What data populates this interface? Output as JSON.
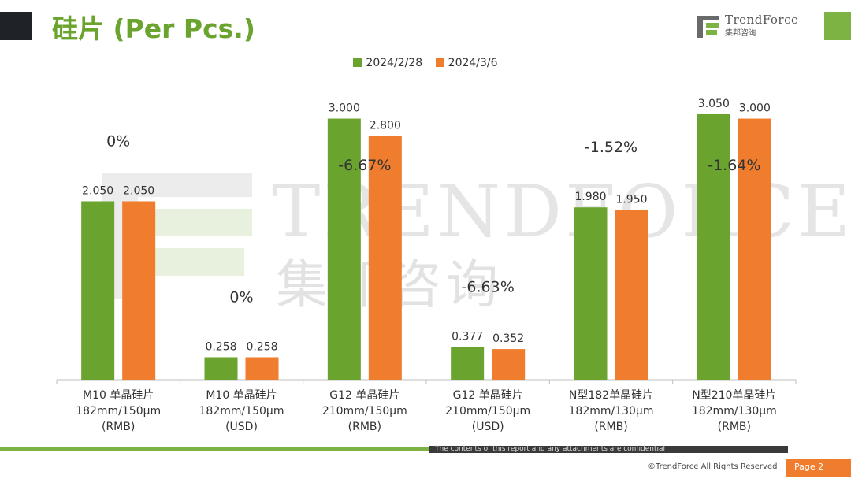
{
  "page_title": "硅片 (Per Pcs.)",
  "logo": {
    "name": "TrendForce",
    "sub": "集邦咨询"
  },
  "watermark": {
    "name": "TRENDFORCE",
    "sub": "集邦咨询"
  },
  "footer": {
    "confidential": "The contents of this report and any attachments are confidential",
    "copyright": "©TrendForce All Rights Reserved",
    "page": "Page 2"
  },
  "colors": {
    "accent_green": "#6aa42e",
    "series1": "#6aa42e",
    "series2": "#ef7d2d"
  },
  "chart_data": {
    "type": "bar",
    "legend_position": "top-center",
    "grid": false,
    "categories": [
      [
        "M10 单晶硅片",
        "182mm/150μm",
        "(RMB)"
      ],
      [
        "M10 单晶硅片",
        "182mm/150μm",
        "(USD)"
      ],
      [
        "G12 单晶硅片",
        "210mm/150μm",
        "(RMB)"
      ],
      [
        "G12 单晶硅片",
        "210mm/150μm",
        "(USD)"
      ],
      [
        "N型182单晶硅片",
        "182mm/130μm",
        "(RMB)"
      ],
      [
        "N型210单晶硅片",
        "182mm/130μm",
        "(RMB)"
      ]
    ],
    "series": [
      {
        "name": "2024/2/28",
        "values": [
          2.05,
          0.258,
          3.0,
          0.377,
          1.98,
          3.05
        ],
        "labels": [
          "2.050",
          "0.258",
          "3.000",
          "0.377",
          "1.980",
          "3.050"
        ]
      },
      {
        "name": "2024/3/6",
        "values": [
          2.05,
          0.258,
          2.8,
          0.352,
          1.95,
          3.0
        ],
        "labels": [
          "2.050",
          "0.258",
          "2.800",
          "0.352",
          "1.950",
          "3.000"
        ]
      }
    ],
    "changes": [
      "0%",
      "0%",
      "-6.67%",
      "-6.63%",
      "-1.52%",
      "-1.64%"
    ]
  }
}
